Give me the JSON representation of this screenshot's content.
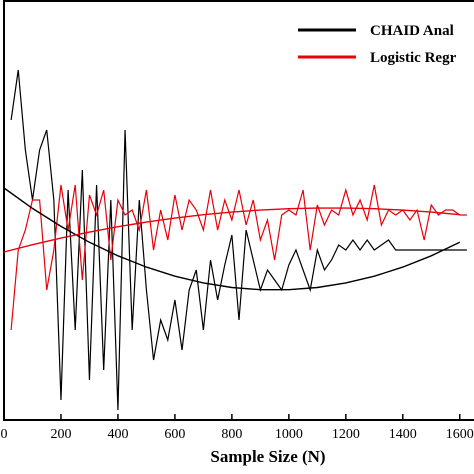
{
  "chart_data": {
    "type": "line",
    "x_label": "Sample Size (N)",
    "xlim": [
      0,
      1650
    ],
    "xticks": [
      0,
      200,
      400,
      600,
      800,
      1000,
      1200,
      1400,
      1600
    ],
    "ylim": [
      0,
      420
    ],
    "legend": "top-right",
    "series": [
      {
        "name": "CHAID Anal",
        "color": "#000000",
        "x": [
          25,
          50,
          75,
          100,
          125,
          150,
          175,
          200,
          225,
          250,
          275,
          300,
          325,
          350,
          375,
          400,
          425,
          450,
          475,
          500,
          525,
          550,
          575,
          600,
          625,
          650,
          675,
          700,
          725,
          750,
          775,
          800,
          825,
          850,
          875,
          900,
          925,
          950,
          975,
          1000,
          1025,
          1050,
          1075,
          1100,
          1125,
          1150,
          1175,
          1200,
          1225,
          1250,
          1275,
          1300,
          1325,
          1350,
          1375,
          1400,
          1425,
          1450,
          1475,
          1500,
          1525,
          1550,
          1575,
          1600,
          1625
        ],
        "values": [
          300,
          350,
          270,
          220,
          270,
          290,
          220,
          20,
          230,
          90,
          250,
          40,
          235,
          50,
          220,
          10,
          290,
          90,
          220,
          130,
          60,
          100,
          80,
          120,
          70,
          130,
          150,
          90,
          160,
          120,
          155,
          185,
          100,
          190,
          160,
          130,
          150,
          140,
          130,
          155,
          170,
          150,
          130,
          170,
          150,
          160,
          175,
          170,
          180,
          170,
          180,
          170,
          175,
          180,
          170,
          170,
          170,
          170,
          170,
          170,
          170,
          170,
          170,
          170,
          170
        ]
      },
      {
        "name": "Logistic Regr",
        "color": "#e8000b",
        "x": [
          25,
          50,
          75,
          100,
          125,
          150,
          175,
          200,
          225,
          250,
          275,
          300,
          325,
          350,
          375,
          400,
          425,
          450,
          475,
          500,
          525,
          550,
          575,
          600,
          625,
          650,
          675,
          700,
          725,
          750,
          775,
          800,
          825,
          850,
          875,
          900,
          925,
          950,
          975,
          1000,
          1025,
          1050,
          1075,
          1100,
          1125,
          1150,
          1175,
          1200,
          1225,
          1250,
          1275,
          1300,
          1325,
          1350,
          1375,
          1400,
          1425,
          1450,
          1475,
          1500,
          1525,
          1550,
          1575,
          1600,
          1625
        ],
        "values": [
          90,
          170,
          190,
          220,
          220,
          130,
          170,
          235,
          190,
          235,
          140,
          225,
          205,
          230,
          160,
          220,
          205,
          210,
          190,
          230,
          170,
          210,
          180,
          225,
          190,
          220,
          210,
          190,
          230,
          190,
          220,
          200,
          230,
          195,
          220,
          180,
          200,
          160,
          205,
          210,
          205,
          230,
          170,
          215,
          195,
          210,
          205,
          230,
          205,
          220,
          200,
          235,
          195,
          210,
          205,
          210,
          200,
          210,
          180,
          215,
          205,
          210,
          210,
          205,
          205
        ]
      },
      {
        "color": "#000000",
        "x": [
          0,
          100,
          200,
          300,
          400,
          500,
          600,
          700,
          800,
          900,
          1000,
          1100,
          1200,
          1300,
          1400,
          1500,
          1600
        ],
        "values": [
          232,
          211.6,
          193.6,
          177.7,
          164.2,
          152.9,
          143.8,
          137.1,
          132.5,
          130.3,
          130.3,
          132.5,
          137.1,
          143.8,
          152.9,
          164.2,
          177.7
        ]
      },
      {
        "color": "#e8000b",
        "x": [
          0,
          100,
          200,
          300,
          400,
          500,
          600,
          700,
          800,
          900,
          1000,
          1100,
          1200,
          1300,
          1400,
          1500,
          1600
        ],
        "values": [
          168,
          175.3,
          181.9,
          187.9,
          193.3,
          197.9,
          201.9,
          205.3,
          207.9,
          209.9,
          211.3,
          211.9,
          211.9,
          211.3,
          209.9,
          207.9,
          205.3
        ]
      }
    ]
  }
}
